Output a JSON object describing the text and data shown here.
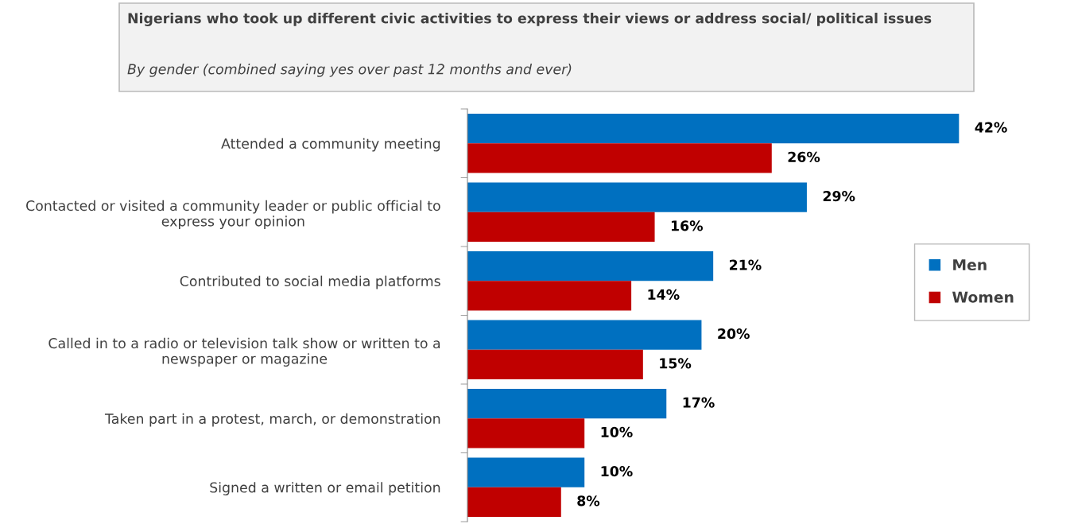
{
  "chart_data": {
    "type": "bar",
    "orientation": "horizontal",
    "title": "Nigerians who took up different civic activities to express their views or address social/ political issues",
    "subtitle": "By gender (combined saying yes over past 12 months and ever)",
    "categories": [
      "Attended a community meeting",
      "Contacted or visited a community leader or public official to express your opinion",
      "Contributed to social media platforms",
      "Called in to a radio or television talk show or written to a newspaper or magazine",
      "Taken part in a protest, march, or demonstration",
      "Signed a written or email petition"
    ],
    "series": [
      {
        "name": "Men",
        "color": "#0070c0",
        "values": [
          42,
          29,
          21,
          20,
          17,
          10
        ],
        "value_labels": [
          "42%",
          "29%",
          "21%",
          "20%",
          "17%",
          "10%"
        ]
      },
      {
        "name": "Women",
        "color": "#c00000",
        "values": [
          26,
          16,
          14,
          15,
          10,
          8
        ],
        "value_labels": [
          "26%",
          "16%",
          "14%",
          "15%",
          "10%",
          "8%"
        ]
      }
    ],
    "legend": "right",
    "grid": false
  }
}
